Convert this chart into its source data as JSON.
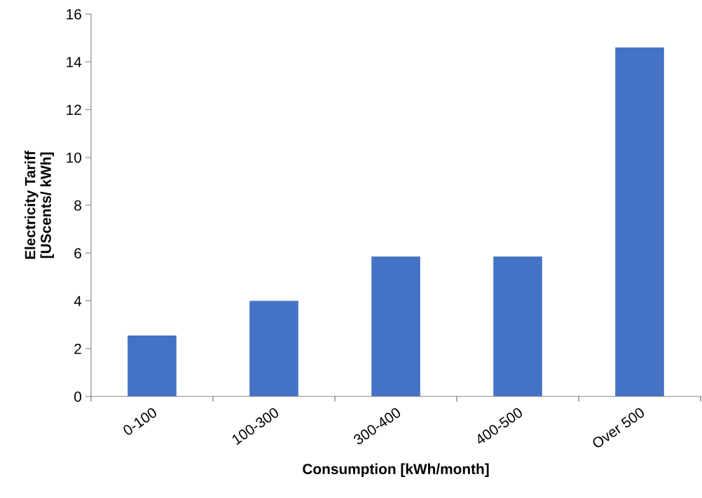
{
  "chart_data": {
    "type": "bar",
    "xlabel": "Consumption [kWh/month]",
    "ylabel": "Electricity Tariff\n[UScents/ kWh]",
    "categories": [
      "0-100",
      "100-300",
      "300-400",
      "400-500",
      "Over 500"
    ],
    "values": [
      2.55,
      4.0,
      5.85,
      5.85,
      14.6
    ],
    "color": "#4472c4",
    "ylim": [
      0,
      16
    ],
    "yticks": [
      0,
      2,
      4,
      6,
      8,
      10,
      12,
      14,
      16
    ],
    "grid": false
  }
}
